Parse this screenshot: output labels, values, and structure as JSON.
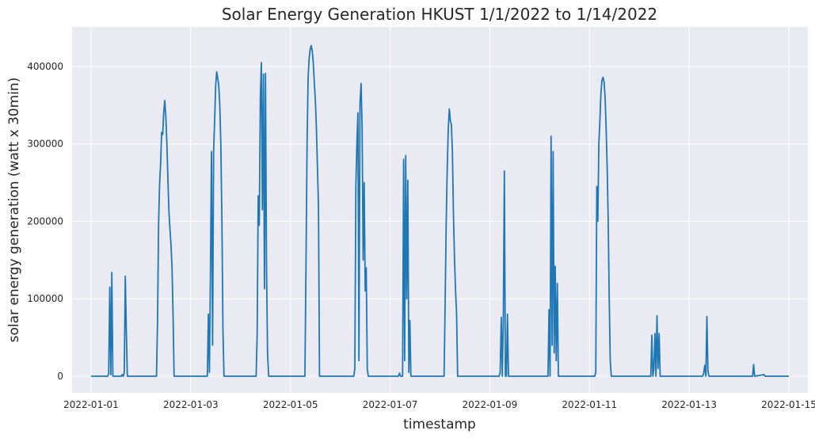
{
  "chart_data": {
    "type": "line",
    "title": "Solar Energy Generation HKUST 1/1/2022 to 1/14/2022",
    "xlabel": "timestamp",
    "ylabel": "solar energy generation (watt x 30min)",
    "xlim": [
      "2021-12-31T14:52",
      "2022-01-15T09:08"
    ],
    "ylim": [
      -21500,
      451000
    ],
    "x_ticks": [
      "2022-01-01",
      "2022-01-03",
      "2022-01-05",
      "2022-01-07",
      "2022-01-09",
      "2022-01-11",
      "2022-01-13",
      "2022-01-15"
    ],
    "y_ticks": [
      0,
      100000,
      200000,
      300000,
      400000
    ],
    "y_tick_labels": [
      "0",
      "100000",
      "200000",
      "300000",
      "400000"
    ],
    "grid": true,
    "background": "#eaeaf2",
    "line_color": "#1f77b4",
    "series": [
      {
        "points": [
          [
            "2022-01-01T00:00",
            0
          ],
          [
            "2022-01-01T08:00",
            0
          ],
          [
            "2022-01-01T08:30",
            3000
          ],
          [
            "2022-01-01T09:00",
            115000
          ],
          [
            "2022-01-01T09:30",
            2000
          ],
          [
            "2022-01-01T10:00",
            134000
          ],
          [
            "2022-01-01T10:30",
            0
          ],
          [
            "2022-01-01T14:30",
            0
          ],
          [
            "2022-01-01T15:00",
            2000
          ],
          [
            "2022-01-01T15:30",
            0
          ],
          [
            "2022-01-01T16:00",
            5000
          ],
          [
            "2022-01-01T16:30",
            129000
          ],
          [
            "2022-01-01T17:00",
            58000
          ],
          [
            "2022-01-01T17:30",
            0
          ],
          [
            "2022-01-02T07:30",
            0
          ],
          [
            "2022-01-02T08:00",
            70000
          ],
          [
            "2022-01-02T08:30",
            195000
          ],
          [
            "2022-01-02T09:00",
            248000
          ],
          [
            "2022-01-02T09:30",
            275000
          ],
          [
            "2022-01-02T10:00",
            315000
          ],
          [
            "2022-01-02T10:30",
            312000
          ],
          [
            "2022-01-02T11:00",
            340000
          ],
          [
            "2022-01-02T11:30",
            356000
          ],
          [
            "2022-01-02T12:00",
            335000
          ],
          [
            "2022-01-02T12:30",
            300000
          ],
          [
            "2022-01-02T13:00",
            255000
          ],
          [
            "2022-01-02T13:30",
            213000
          ],
          [
            "2022-01-02T14:00",
            190000
          ],
          [
            "2022-01-02T14:30",
            170000
          ],
          [
            "2022-01-02T15:00",
            140000
          ],
          [
            "2022-01-02T15:30",
            80000
          ],
          [
            "2022-01-02T16:00",
            0
          ],
          [
            "2022-01-03T08:00",
            0
          ],
          [
            "2022-01-03T08:30",
            80000
          ],
          [
            "2022-01-03T09:00",
            5000
          ],
          [
            "2022-01-03T09:30",
            135000
          ],
          [
            "2022-01-03T10:00",
            290000
          ],
          [
            "2022-01-03T10:30",
            40000
          ],
          [
            "2022-01-03T11:00",
            290000
          ],
          [
            "2022-01-03T11:30",
            330000
          ],
          [
            "2022-01-03T12:00",
            375000
          ],
          [
            "2022-01-03T12:30",
            393000
          ],
          [
            "2022-01-03T13:00",
            385000
          ],
          [
            "2022-01-03T13:30",
            375000
          ],
          [
            "2022-01-03T14:00",
            350000
          ],
          [
            "2022-01-03T14:30",
            300000
          ],
          [
            "2022-01-03T15:00",
            200000
          ],
          [
            "2022-01-03T15:30",
            60000
          ],
          [
            "2022-01-03T16:00",
            0
          ],
          [
            "2022-01-04T07:30",
            0
          ],
          [
            "2022-01-04T08:00",
            55000
          ],
          [
            "2022-01-04T08:30",
            233000
          ],
          [
            "2022-01-04T09:00",
            195000
          ],
          [
            "2022-01-04T09:30",
            360000
          ],
          [
            "2022-01-04T10:00",
            405000
          ],
          [
            "2022-01-04T10:30",
            215000
          ],
          [
            "2022-01-04T11:00",
            390000
          ],
          [
            "2022-01-04T11:30",
            113000
          ],
          [
            "2022-01-04T12:00",
            391000
          ],
          [
            "2022-01-04T12:30",
            143000
          ],
          [
            "2022-01-04T13:00",
            30000
          ],
          [
            "2022-01-04T13:30",
            0
          ],
          [
            "2022-01-05T07:00",
            0
          ],
          [
            "2022-01-05T07:30",
            150000
          ],
          [
            "2022-01-05T08:00",
            300000
          ],
          [
            "2022-01-05T08:30",
            385000
          ],
          [
            "2022-01-05T09:00",
            410000
          ],
          [
            "2022-01-05T09:30",
            422000
          ],
          [
            "2022-01-05T10:00",
            427000
          ],
          [
            "2022-01-05T10:30",
            420000
          ],
          [
            "2022-01-05T11:00",
            405000
          ],
          [
            "2022-01-05T11:30",
            380000
          ],
          [
            "2022-01-05T12:00",
            355000
          ],
          [
            "2022-01-05T12:30",
            320000
          ],
          [
            "2022-01-05T13:00",
            270000
          ],
          [
            "2022-01-05T13:30",
            220000
          ],
          [
            "2022-01-05T14:00",
            0
          ],
          [
            "2022-01-06T06:30",
            0
          ],
          [
            "2022-01-06T07:00",
            10000
          ],
          [
            "2022-01-06T07:30",
            245000
          ],
          [
            "2022-01-06T08:00",
            300000
          ],
          [
            "2022-01-06T08:30",
            340000
          ],
          [
            "2022-01-06T09:00",
            20000
          ],
          [
            "2022-01-06T09:30",
            352000
          ],
          [
            "2022-01-06T10:00",
            378000
          ],
          [
            "2022-01-06T10:30",
            320000
          ],
          [
            "2022-01-06T11:00",
            150000
          ],
          [
            "2022-01-06T11:30",
            250000
          ],
          [
            "2022-01-06T12:00",
            110000
          ],
          [
            "2022-01-06T12:30",
            140000
          ],
          [
            "2022-01-06T13:00",
            10000
          ],
          [
            "2022-01-06T13:30",
            0
          ],
          [
            "2022-01-07T04:00",
            0
          ],
          [
            "2022-01-07T04:30",
            4000
          ],
          [
            "2022-01-07T05:00",
            0
          ],
          [
            "2022-01-07T06:00",
            0
          ],
          [
            "2022-01-07T06:30",
            280000
          ],
          [
            "2022-01-07T07:00",
            20000
          ],
          [
            "2022-01-07T07:30",
            285000
          ],
          [
            "2022-01-07T08:00",
            100000
          ],
          [
            "2022-01-07T08:30",
            253000
          ],
          [
            "2022-01-07T09:00",
            5000
          ],
          [
            "2022-01-07T09:30",
            72000
          ],
          [
            "2022-01-07T10:00",
            0
          ],
          [
            "2022-01-08T02:00",
            0
          ],
          [
            "2022-01-08T02:30",
            100000
          ],
          [
            "2022-01-08T03:00",
            200000
          ],
          [
            "2022-01-08T03:30",
            270000
          ],
          [
            "2022-01-08T04:00",
            320000
          ],
          [
            "2022-01-08T04:30",
            345000
          ],
          [
            "2022-01-08T05:00",
            330000
          ],
          [
            "2022-01-08T05:30",
            325000
          ],
          [
            "2022-01-08T06:00",
            290000
          ],
          [
            "2022-01-08T06:30",
            210000
          ],
          [
            "2022-01-08T07:00",
            150000
          ],
          [
            "2022-01-08T07:30",
            110000
          ],
          [
            "2022-01-08T08:00",
            80000
          ],
          [
            "2022-01-08T08:30",
            0
          ],
          [
            "2022-01-09T04:30",
            0
          ],
          [
            "2022-01-09T05:00",
            5000
          ],
          [
            "2022-01-09T05:30",
            76000
          ],
          [
            "2022-01-09T06:00",
            0
          ],
          [
            "2022-01-09T06:30",
            75000
          ],
          [
            "2022-01-09T07:00",
            265000
          ],
          [
            "2022-01-09T07:30",
            0
          ],
          [
            "2022-01-09T08:00",
            0
          ],
          [
            "2022-01-09T08:30",
            80000
          ],
          [
            "2022-01-09T09:00",
            0
          ],
          [
            "2022-01-10T04:00",
            0
          ],
          [
            "2022-01-10T04:30",
            86000
          ],
          [
            "2022-01-10T05:00",
            0
          ],
          [
            "2022-01-10T05:30",
            310000
          ],
          [
            "2022-01-10T06:00",
            40000
          ],
          [
            "2022-01-10T06:30",
            290000
          ],
          [
            "2022-01-10T07:00",
            30000
          ],
          [
            "2022-01-10T07:30",
            142000
          ],
          [
            "2022-01-10T08:00",
            20000
          ],
          [
            "2022-01-10T08:30",
            120000
          ],
          [
            "2022-01-10T09:00",
            0
          ],
          [
            "2022-01-11T02:30",
            0
          ],
          [
            "2022-01-11T03:00",
            5000
          ],
          [
            "2022-01-11T03:30",
            245000
          ],
          [
            "2022-01-11T04:00",
            200000
          ],
          [
            "2022-01-11T04:30",
            300000
          ],
          [
            "2022-01-11T05:00",
            330000
          ],
          [
            "2022-01-11T05:30",
            365000
          ],
          [
            "2022-01-11T06:00",
            382000
          ],
          [
            "2022-01-11T06:30",
            386000
          ],
          [
            "2022-01-11T07:00",
            380000
          ],
          [
            "2022-01-11T07:30",
            360000
          ],
          [
            "2022-01-11T08:00",
            320000
          ],
          [
            "2022-01-11T08:30",
            270000
          ],
          [
            "2022-01-11T09:00",
            200000
          ],
          [
            "2022-01-11T09:30",
            100000
          ],
          [
            "2022-01-11T10:00",
            20000
          ],
          [
            "2022-01-11T10:30",
            0
          ],
          [
            "2022-01-12T05:30",
            0
          ],
          [
            "2022-01-12T06:00",
            53000
          ],
          [
            "2022-01-12T06:30",
            0
          ],
          [
            "2022-01-12T07:00",
            10000
          ],
          [
            "2022-01-12T07:30",
            55000
          ],
          [
            "2022-01-12T08:00",
            0
          ],
          [
            "2022-01-12T08:30",
            78000
          ],
          [
            "2022-01-12T09:00",
            10000
          ],
          [
            "2022-01-12T09:30",
            55000
          ],
          [
            "2022-01-12T10:00",
            0
          ],
          [
            "2022-01-13T06:30",
            0
          ],
          [
            "2022-01-13T07:00",
            4000
          ],
          [
            "2022-01-13T07:30",
            14000
          ],
          [
            "2022-01-13T08:00",
            0
          ],
          [
            "2022-01-13T08:30",
            77000
          ],
          [
            "2022-01-13T09:00",
            7000
          ],
          [
            "2022-01-13T09:30",
            0
          ],
          [
            "2022-01-14T06:30",
            0
          ],
          [
            "2022-01-14T07:00",
            15000
          ],
          [
            "2022-01-14T07:30",
            0
          ],
          [
            "2022-01-14T12:00",
            2000
          ],
          [
            "2022-01-14T12:30",
            0
          ],
          [
            "2022-01-15T00:00",
            0
          ]
        ]
      }
    ]
  }
}
